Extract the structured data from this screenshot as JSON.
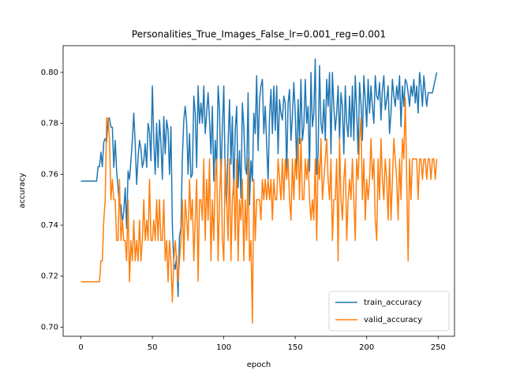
{
  "chart_data": {
    "type": "line",
    "title": "Personalities_True_Images_False_lr=0.001_reg=0.001",
    "x_label": "epoch",
    "y_label": "accuracy",
    "x": [
      0,
      1,
      2,
      3,
      4,
      5,
      6,
      7,
      8,
      9,
      10,
      11,
      12,
      13,
      14,
      15,
      16,
      17,
      18,
      19,
      20,
      21,
      22,
      23,
      24,
      25,
      26,
      27,
      28,
      29,
      30,
      31,
      32,
      33,
      34,
      35,
      36,
      37,
      38,
      39,
      40,
      41,
      42,
      43,
      44,
      45,
      46,
      47,
      48,
      49,
      50,
      51,
      52,
      53,
      54,
      55,
      56,
      57,
      58,
      59,
      60,
      61,
      62,
      63,
      64,
      65,
      66,
      67,
      68,
      69,
      70,
      71,
      72,
      73,
      74,
      75,
      76,
      77,
      78,
      79,
      80,
      81,
      82,
      83,
      84,
      85,
      86,
      87,
      88,
      89,
      90,
      91,
      92,
      93,
      94,
      95,
      96,
      97,
      98,
      99,
      100,
      101,
      102,
      103,
      104,
      105,
      106,
      107,
      108,
      109,
      110,
      111,
      112,
      113,
      114,
      115,
      116,
      117,
      118,
      119,
      120,
      121,
      122,
      123,
      124,
      125,
      126,
      127,
      128,
      129,
      130,
      131,
      132,
      133,
      134,
      135,
      136,
      137,
      138,
      139,
      140,
      141,
      142,
      143,
      144,
      145,
      146,
      147,
      148,
      149,
      150,
      151,
      152,
      153,
      154,
      155,
      156,
      157,
      158,
      159,
      160,
      161,
      162,
      163,
      164,
      165,
      166,
      167,
      168,
      169,
      170,
      171,
      172,
      173,
      174,
      175,
      176,
      177,
      178,
      179,
      180,
      181,
      182,
      183,
      184,
      185,
      186,
      187,
      188,
      189,
      190,
      191,
      192,
      193,
      194,
      195,
      196,
      197,
      198,
      199,
      200,
      201,
      202,
      203,
      204,
      205,
      206,
      207,
      208,
      209,
      210,
      211,
      212,
      213,
      214,
      215,
      216,
      217,
      218,
      219,
      220,
      221,
      222,
      223,
      224,
      225,
      226,
      227,
      228,
      229,
      230,
      231,
      232,
      233,
      234,
      235,
      236,
      237,
      238,
      239,
      240,
      241,
      242,
      243,
      244,
      245,
      246,
      247,
      248,
      249
    ],
    "series": [
      {
        "name": "train_accuracy",
        "color": "#1f77b4",
        "values": [
          0.7573,
          0.7573,
          0.7573,
          0.7573,
          0.7573,
          0.7573,
          0.7573,
          0.7573,
          0.7573,
          0.7573,
          0.7573,
          0.7573,
          0.763,
          0.763,
          0.7687,
          0.763,
          0.7727,
          0.774,
          0.7727,
          0.782,
          0.782,
          0.7785,
          0.7785,
          0.7627,
          0.7733,
          0.7613,
          0.7547,
          0.748,
          0.748,
          0.7413,
          0.7453,
          0.7547,
          0.7387,
          0.7613,
          0.758,
          0.7653,
          0.7733,
          0.784,
          0.772,
          0.756,
          0.7667,
          0.7733,
          0.77,
          0.7627,
          0.7653,
          0.772,
          0.7627,
          0.78,
          0.7767,
          0.7653,
          0.7947,
          0.7733,
          0.76,
          0.78,
          0.7627,
          0.7813,
          0.772,
          0.758,
          0.7827,
          0.768,
          0.7813,
          0.7773,
          0.76,
          0.7787,
          0.74,
          0.7253,
          0.7227,
          0.728,
          0.712,
          0.736,
          0.7387,
          0.7667,
          0.7813,
          0.7867,
          0.78,
          0.76,
          0.776,
          0.7587,
          0.76,
          0.7907,
          0.784,
          0.7627,
          0.7947,
          0.78,
          0.788,
          0.78,
          0.7947,
          0.776,
          0.784,
          0.792,
          0.7813,
          0.768,
          0.7867,
          0.7573,
          0.7733,
          0.7613,
          0.7947,
          0.7853,
          0.7573,
          0.7787,
          0.7947,
          0.7573,
          0.748,
          0.772,
          0.7893,
          0.764,
          0.7827,
          0.752,
          0.7773,
          0.7867,
          0.7547,
          0.7693,
          0.7507,
          0.788,
          0.7787,
          0.7627,
          0.76,
          0.792,
          0.748,
          0.7653,
          0.7573,
          0.784,
          0.776,
          0.7987,
          0.7693,
          0.7893,
          0.7947,
          0.7973,
          0.776,
          0.7867,
          0.772,
          0.7573,
          0.7827,
          0.7933,
          0.776,
          0.7947,
          0.7773,
          0.7947,
          0.768,
          0.7893,
          0.784,
          0.7813,
          0.7907,
          0.788,
          0.7613,
          0.788,
          0.7933,
          0.7733,
          0.7827,
          0.796,
          0.784,
          0.7627,
          0.7893,
          0.772,
          0.7973,
          0.7733,
          0.7787,
          0.7973,
          0.78,
          0.7867,
          0.7613,
          0.8,
          0.7787,
          0.784,
          0.8053,
          0.76,
          0.768,
          0.8027,
          0.78,
          0.776,
          0.7893,
          0.7733,
          0.7973,
          0.7867,
          0.8,
          0.768,
          0.8,
          0.7867,
          0.7773,
          0.784,
          0.7947,
          0.7733,
          0.792,
          0.7867,
          0.768,
          0.7947,
          0.78,
          0.7747,
          0.7907,
          0.7747,
          0.7947,
          0.7733,
          0.7987,
          0.784,
          0.768,
          0.796,
          0.788,
          0.7733,
          0.7987,
          0.7893,
          0.7787,
          0.7973,
          0.784,
          0.7947,
          0.7867,
          0.78,
          0.7987,
          0.7907,
          0.7893,
          0.796,
          0.7813,
          0.7933,
          0.7987,
          0.7853,
          0.7893,
          0.7947,
          0.776,
          0.784,
          0.7973,
          0.7907,
          0.7867,
          0.7947,
          0.7893,
          0.7987,
          0.7787,
          0.7947,
          0.7867,
          0.7973,
          0.796,
          0.792,
          0.7867,
          0.7947,
          0.7907,
          0.7973,
          0.788,
          0.7947,
          0.784,
          0.8,
          0.7947,
          0.7867,
          0.7987,
          0.792,
          0.7867,
          0.792,
          0.792,
          0.792,
          0.792,
          0.7947,
          0.7973,
          0.8
        ]
      },
      {
        "name": "valid_accuracy",
        "color": "#ff7f0e",
        "values": [
          0.7178,
          0.7178,
          0.7178,
          0.7178,
          0.7178,
          0.7178,
          0.7178,
          0.7178,
          0.7178,
          0.7178,
          0.7178,
          0.7178,
          0.7178,
          0.7178,
          0.726,
          0.726,
          0.742,
          0.75,
          0.782,
          0.782,
          0.774,
          0.75,
          0.758,
          0.75,
          0.75,
          0.734,
          0.734,
          0.758,
          0.734,
          0.742,
          0.734,
          0.734,
          0.726,
          0.75,
          0.7178,
          0.734,
          0.726,
          0.742,
          0.726,
          0.734,
          0.726,
          0.742,
          0.726,
          0.734,
          0.75,
          0.734,
          0.742,
          0.734,
          0.758,
          0.734,
          0.734,
          0.742,
          0.734,
          0.75,
          0.734,
          0.75,
          0.734,
          0.734,
          0.75,
          0.726,
          0.734,
          0.7178,
          0.734,
          0.726,
          0.7098,
          0.726,
          0.734,
          0.726,
          0.7178,
          0.726,
          0.734,
          0.75,
          0.726,
          0.75,
          0.742,
          0.734,
          0.758,
          0.742,
          0.75,
          0.726,
          0.742,
          0.758,
          0.718,
          0.75,
          0.75,
          0.742,
          0.766,
          0.734,
          0.758,
          0.742,
          0.766,
          0.726,
          0.75,
          0.734,
          0.758,
          0.766,
          0.726,
          0.75,
          0.766,
          0.734,
          0.726,
          0.766,
          0.75,
          0.734,
          0.766,
          0.726,
          0.75,
          0.758,
          0.734,
          0.766,
          0.726,
          0.75,
          0.742,
          0.758,
          0.726,
          0.75,
          0.734,
          0.766,
          0.726,
          0.734,
          0.7016,
          0.758,
          0.734,
          0.75,
          0.75,
          0.75,
          0.742,
          0.758,
          0.75,
          0.758,
          0.75,
          0.758,
          0.75,
          0.758,
          0.742,
          0.758,
          0.75,
          0.75,
          0.766,
          0.758,
          0.75,
          0.766,
          0.75,
          0.766,
          0.758,
          0.766,
          0.75,
          0.742,
          0.766,
          0.75,
          0.766,
          0.758,
          0.774,
          0.75,
          0.774,
          0.75,
          0.75,
          0.766,
          0.758,
          0.766,
          0.75,
          0.742,
          0.75,
          0.742,
          0.766,
          0.734,
          0.766,
          0.758,
          0.774,
          0.75,
          0.758,
          0.766,
          0.774,
          0.758,
          0.75,
          0.766,
          0.734,
          0.75,
          0.75,
          0.766,
          0.726,
          0.774,
          0.75,
          0.742,
          0.758,
          0.766,
          0.734,
          0.75,
          0.758,
          0.75,
          0.766,
          0.75,
          0.734,
          0.766,
          0.758,
          0.774,
          0.782,
          0.75,
          0.766,
          0.742,
          0.758,
          0.75,
          0.758,
          0.774,
          0.758,
          0.766,
          0.742,
          0.734,
          0.766,
          0.75,
          0.774,
          0.758,
          0.75,
          0.766,
          0.758,
          0.742,
          0.766,
          0.742,
          0.758,
          0.774,
          0.766,
          0.758,
          0.742,
          0.766,
          0.75,
          0.774,
          0.766,
          0.79,
          0.758,
          0.726,
          0.766,
          0.75,
          0.766,
          0.766,
          0.766,
          0.766,
          0.75,
          0.766,
          0.766,
          0.758,
          0.766,
          0.766,
          0.758,
          0.766,
          0.766,
          0.758,
          0.766,
          0.766,
          0.758,
          0.766
        ]
      }
    ],
    "xlim": [
      -12.45,
      261.45
    ],
    "ylim": [
      0.6964,
      0.8105
    ],
    "xticks": [
      0,
      50,
      100,
      150,
      200,
      250
    ],
    "yticks": [
      {
        "value": 0.7,
        "label": "0.70"
      },
      {
        "value": 0.72,
        "label": "0.72"
      },
      {
        "value": 0.74,
        "label": "0.74"
      },
      {
        "value": 0.76,
        "label": "0.76"
      },
      {
        "value": 0.78,
        "label": "0.78"
      },
      {
        "value": 0.8,
        "label": "0.80"
      }
    ],
    "legend": "lower right"
  }
}
